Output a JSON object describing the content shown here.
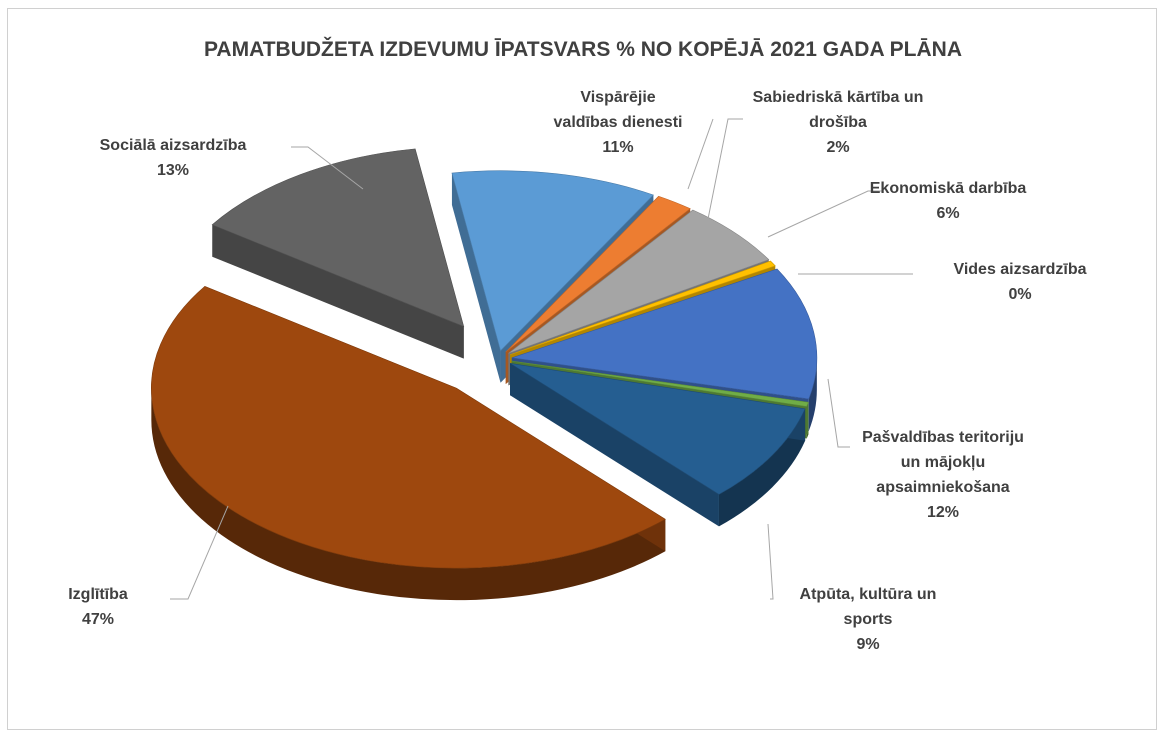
{
  "chart_data": {
    "type": "pie",
    "title": "PAMATBUDŽETA IZDEVUMU ĪPATSVARS % NO KOPĒJĀ 2021 GADA PLĀNA",
    "unit": "%",
    "slices": [
      {
        "name": "Vispārējie valdības dienesti",
        "label_lines": [
          "Vispārējie",
          "valdības dienesti"
        ],
        "value": 11,
        "label": "11%",
        "color": "#5b9bd5"
      },
      {
        "name": "Sabiedriskā kārtība un drošība",
        "label_lines": [
          "Sabiedriskā kārtība un",
          "drošība"
        ],
        "value": 2,
        "label": "2%",
        "color": "#ed7d31"
      },
      {
        "name": "Ekonomiskā darbība",
        "label_lines": [
          "Ekonomiskā darbība"
        ],
        "value": 6,
        "label": "6%",
        "color": "#a5a5a5"
      },
      {
        "name": "Vides aizsardzība",
        "label_lines": [
          "Vides aizsardzība"
        ],
        "value": 0.5,
        "label": "0%",
        "color": "#ffc000"
      },
      {
        "name": "Pašvaldības teritoriju un mājokļu apsaimniekošana",
        "label_lines": [
          "Pašvaldības teritoriju",
          "un mājokļu",
          "apsaimniekošana"
        ],
        "value": 12,
        "label": "12%",
        "color": "#4472c4"
      },
      {
        "name": "(zaļais sektors)",
        "label_lines": [],
        "value": 0.4,
        "label": "",
        "color": "#70ad47"
      },
      {
        "name": "Atpūta, kultūra un sports",
        "label_lines": [
          "Atpūta, kultūra un",
          "sports"
        ],
        "value": 9,
        "label": "9%",
        "color": "#255e91"
      },
      {
        "name": "Izglītība",
        "label_lines": [
          "Izglītība"
        ],
        "value": 47,
        "label": "47%",
        "color": "#9e480e"
      },
      {
        "name": "Sociālā aizsardzība",
        "label_lines": [
          "Sociālā aizsardzība"
        ],
        "value": 13,
        "label": "13%",
        "color": "#636363"
      }
    ],
    "legend": "none",
    "style": "3d-exploded-pie"
  }
}
